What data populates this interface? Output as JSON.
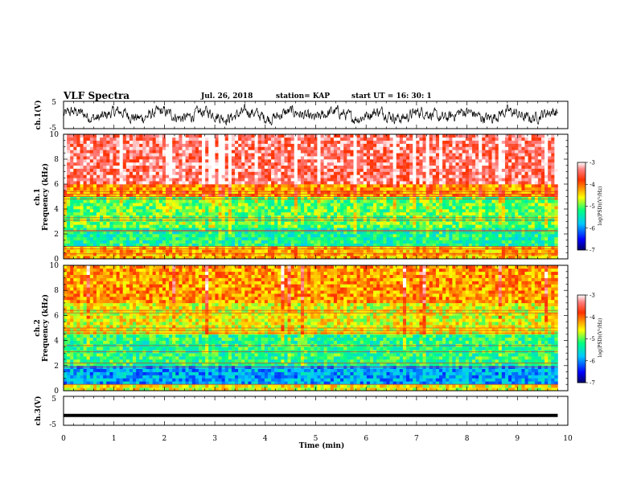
{
  "header": {
    "title": "VLF Spectra",
    "date": "Jul. 26, 2018",
    "station": "station= KAP",
    "start": "start UT = 16: 30: 1"
  },
  "chart_data": [
    {
      "type": "line",
      "panel": "ch1-waveform",
      "ylabel": "ch.1(V)",
      "ylim": [
        -5,
        5
      ],
      "yticks": [
        "5",
        "-5"
      ],
      "xlim": [
        0,
        10
      ],
      "description_series": "noisy voltage trace around 0 V, amplitude roughly ±3 V"
    },
    {
      "type": "heatmap",
      "panel": "ch1-spectrogram",
      "ylabel_top": "ch.1",
      "ylabel": "Frequency (kHz)",
      "ylim": [
        0,
        10
      ],
      "yticks": [
        "0",
        "2",
        "4",
        "6",
        "8",
        "10"
      ],
      "xlim": [
        0,
        10
      ],
      "colorbar": {
        "label": "log(PSD)(V²/Hz)",
        "ticks": [
          "-3",
          "-4",
          "-5",
          "-6",
          "-7"
        ],
        "range": [
          -7,
          -3
        ]
      },
      "bands": [
        {
          "from_khz": 6,
          "to_khz": 10,
          "level": -3.4
        },
        {
          "from_khz": 5,
          "to_khz": 6,
          "level": -4.2
        },
        {
          "from_khz": 2.5,
          "to_khz": 5,
          "level": -5.0
        },
        {
          "from_khz": 1,
          "to_khz": 2.5,
          "level": -5.3
        },
        {
          "from_khz": 0,
          "to_khz": 1,
          "level": -4.3
        }
      ]
    },
    {
      "type": "heatmap",
      "panel": "ch2-spectrogram",
      "ylabel_top": "ch.2",
      "ylabel": "Frequency (kHz)",
      "ylim": [
        0,
        10
      ],
      "yticks": [
        "0",
        "2",
        "4",
        "6",
        "8",
        "10"
      ],
      "xlim": [
        0,
        10
      ],
      "colorbar": {
        "label": "log(PSD)(V²/Hz)",
        "ticks": [
          "-3",
          "-4",
          "-5",
          "-6",
          "-7"
        ],
        "range": [
          -7,
          -3
        ]
      },
      "bands": [
        {
          "from_khz": 7,
          "to_khz": 10,
          "level": -4.2
        },
        {
          "from_khz": 4.5,
          "to_khz": 7,
          "level": -4.6
        },
        {
          "from_khz": 2,
          "to_khz": 4.5,
          "level": -5.2
        },
        {
          "from_khz": 0.5,
          "to_khz": 2,
          "level": -5.9
        },
        {
          "from_khz": 0,
          "to_khz": 0.5,
          "level": -4.6
        }
      ]
    },
    {
      "type": "line",
      "panel": "ch3-waveform",
      "ylabel": "ch.3(V)",
      "ylim": [
        -5,
        5
      ],
      "yticks": [
        "5",
        "-5"
      ],
      "xlim": [
        0,
        10
      ],
      "constant_value": -1.6
    }
  ],
  "xaxis": {
    "label": "Time (min)",
    "ticks": [
      "0",
      "1",
      "2",
      "3",
      "4",
      "5",
      "6",
      "7",
      "8",
      "9",
      "10"
    ],
    "range": [
      0,
      10
    ]
  }
}
